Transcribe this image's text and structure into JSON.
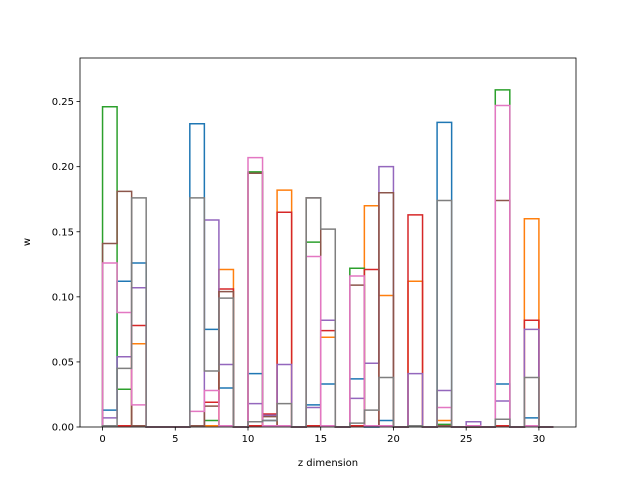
{
  "chart_data": {
    "type": "step-histogram",
    "xlabel": "z dimension",
    "ylabel": "w",
    "xlim": [
      -1.55,
      32.55
    ],
    "ylim": [
      0,
      0.2835
    ],
    "xticks": [
      0,
      5,
      10,
      15,
      20,
      25,
      30
    ],
    "yticks": [
      0.0,
      0.05,
      0.1,
      0.15,
      0.2,
      0.25
    ],
    "ytick_labels": [
      "0.00",
      "0.05",
      "0.10",
      "0.15",
      "0.20",
      "0.25"
    ],
    "bins": 31,
    "bin_start": 0,
    "bin_width": 1,
    "grid": false,
    "legend": false,
    "series": [
      {
        "color": "#1f77b4",
        "values": [
          0.013,
          0.112,
          0.126,
          0,
          0,
          0,
          0.233,
          0.075,
          0.03,
          0,
          0.041,
          0.005,
          0.001,
          0,
          0.017,
          0.033,
          0,
          0.037,
          0,
          0.005,
          0,
          0.001,
          0,
          0.234,
          0,
          0,
          0,
          0.033,
          0,
          0.007,
          0
        ]
      },
      {
        "color": "#ff7f0e",
        "values": [
          0.001,
          0.001,
          0.064,
          0,
          0,
          0,
          0.001,
          0.001,
          0.121,
          0,
          0.001,
          0.001,
          0.182,
          0,
          0.001,
          0.069,
          0,
          0.001,
          0.17,
          0.101,
          0,
          0.112,
          0,
          0.005,
          0,
          0,
          0,
          0.001,
          0,
          0.16,
          0
        ]
      },
      {
        "color": "#2ca02c",
        "values": [
          0.246,
          0.029,
          0.001,
          0,
          0,
          0,
          0.001,
          0.005,
          0.001,
          0,
          0.196,
          0.001,
          0.001,
          0,
          0.142,
          0.001,
          0,
          0.122,
          0.001,
          0.001,
          0,
          0.001,
          0,
          0.002,
          0,
          0,
          0,
          0.259,
          0,
          0.001,
          0
        ]
      },
      {
        "color": "#d62728",
        "values": [
          0.001,
          0.001,
          0.078,
          0,
          0,
          0,
          0.001,
          0.019,
          0.106,
          0,
          0.001,
          0.01,
          0.165,
          0,
          0.001,
          0.074,
          0,
          0.001,
          0.121,
          0.001,
          0,
          0.163,
          0,
          0.001,
          0,
          0,
          0,
          0.001,
          0,
          0.082,
          0
        ]
      },
      {
        "color": "#9467bd",
        "values": [
          0.007,
          0.054,
          0.107,
          0,
          0,
          0,
          0.001,
          0.159,
          0.048,
          0,
          0.018,
          0.009,
          0.048,
          0,
          0.015,
          0.082,
          0,
          0.022,
          0.049,
          0.2,
          0,
          0.041,
          0,
          0.028,
          0,
          0.004,
          0,
          0.02,
          0,
          0.075,
          0
        ]
      },
      {
        "color": "#8c564b",
        "values": [
          0.141,
          0.181,
          0.001,
          0,
          0,
          0,
          0.001,
          0.016,
          0.104,
          0,
          0.195,
          0.008,
          0.001,
          0,
          0.176,
          0.001,
          0,
          0.109,
          0.001,
          0.18,
          0,
          0.001,
          0,
          0.001,
          0,
          0,
          0,
          0.174,
          0,
          0.001,
          0
        ]
      },
      {
        "color": "#e377c2",
        "values": [
          0.126,
          0.088,
          0.017,
          0,
          0,
          0,
          0.012,
          0.028,
          0.001,
          0,
          0.207,
          0.001,
          0.001,
          0,
          0.131,
          0.001,
          0,
          0.116,
          0.001,
          0.001,
          0,
          0.001,
          0,
          0.015,
          0,
          0.001,
          0,
          0.247,
          0,
          0.001,
          0
        ]
      },
      {
        "color": "#7f7f7f",
        "values": [
          0.001,
          0.045,
          0.176,
          0,
          0,
          0,
          0.176,
          0.043,
          0.099,
          0,
          0.004,
          0.005,
          0.018,
          0,
          0.176,
          0.152,
          0,
          0.003,
          0.013,
          0.038,
          0,
          0.001,
          0,
          0.174,
          0,
          0,
          0,
          0.006,
          0,
          0.038,
          0
        ]
      }
    ]
  }
}
